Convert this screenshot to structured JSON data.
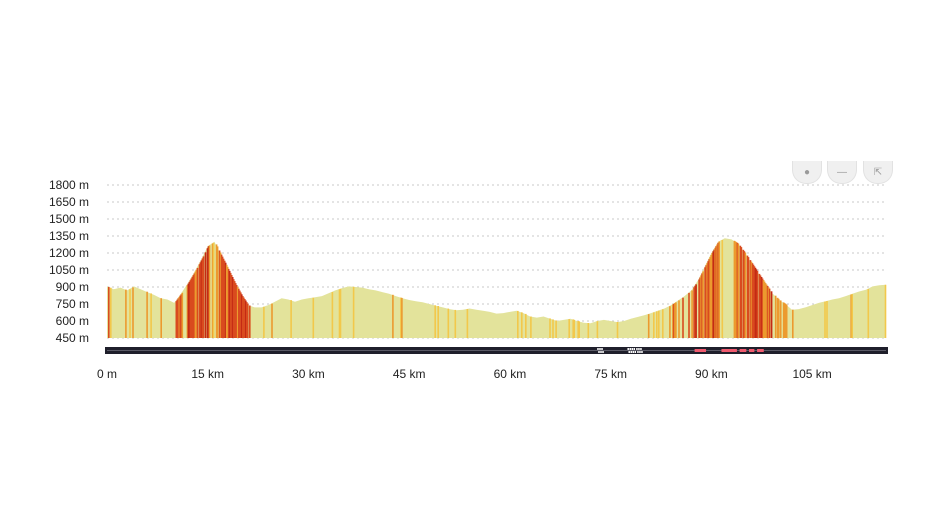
{
  "chart_data": {
    "type": "area",
    "title": "",
    "xlabel": "",
    "ylabel": "",
    "x_unit": "km",
    "y_unit": "m",
    "xlim": [
      0,
      116
    ],
    "ylim": [
      450,
      1800
    ],
    "y_tick_values": [
      450,
      600,
      750,
      900,
      1050,
      1200,
      1350,
      1500,
      1650,
      1800
    ],
    "y_tick_labels": [
      "450 m",
      "600 m",
      "750 m",
      "900 m",
      "1050 m",
      "1200 m",
      "1350 m",
      "1500 m",
      "1650 m",
      "1800 m"
    ],
    "x_tick_values": [
      0,
      15,
      30,
      45,
      60,
      75,
      90,
      105
    ],
    "x_tick_labels": [
      "0 m",
      "15 km",
      "30 km",
      "45 km",
      "60 km",
      "75 km",
      "90 km",
      "105 km"
    ],
    "grid": true,
    "series": [
      {
        "x": [
          0,
          1,
          2,
          3,
          4,
          5,
          6,
          7,
          8,
          9,
          10,
          11,
          12,
          13,
          14,
          15,
          16,
          17,
          18,
          19,
          20,
          21,
          22,
          23,
          24,
          25,
          26,
          27,
          28,
          29,
          30,
          31,
          32,
          33,
          34,
          35,
          36,
          37,
          38,
          39,
          40,
          41,
          42,
          43,
          44,
          45,
          46,
          47,
          48,
          49,
          50,
          51,
          52,
          53,
          54,
          55,
          56,
          57,
          58,
          59,
          60,
          61,
          62,
          63,
          64,
          65,
          66,
          67,
          68,
          69,
          70,
          71,
          72,
          73,
          74,
          75,
          76,
          77,
          78,
          79,
          80,
          81,
          82,
          83,
          84,
          85,
          86,
          87,
          88,
          89,
          90,
          91,
          92,
          93,
          94,
          95,
          96,
          97,
          98,
          99,
          100,
          101,
          102,
          103,
          104,
          105,
          106,
          107,
          108,
          109,
          110,
          111,
          112,
          113,
          114,
          115,
          116
        ],
        "y": [
          905,
          880,
          895,
          870,
          905,
          880,
          855,
          830,
          800,
          790,
          760,
          840,
          930,
          1030,
          1140,
          1260,
          1300,
          1180,
          1060,
          940,
          830,
          740,
          720,
          720,
          740,
          770,
          800,
          790,
          770,
          790,
          800,
          810,
          820,
          845,
          870,
          890,
          905,
          900,
          895,
          880,
          870,
          855,
          840,
          820,
          800,
          785,
          775,
          765,
          750,
          735,
          720,
          705,
          695,
          700,
          710,
          700,
          690,
          680,
          665,
          670,
          680,
          690,
          670,
          640,
          630,
          640,
          620,
          600,
          610,
          620,
          600,
          585,
          580,
          600,
          610,
          600,
          590,
          600,
          620,
          635,
          650,
          670,
          690,
          710,
          740,
          780,
          820,
          870,
          960,
          1080,
          1200,
          1300,
          1330,
          1320,
          1280,
          1200,
          1110,
          1020,
          930,
          850,
          790,
          750,
          700,
          705,
          720,
          740,
          760,
          775,
          790,
          800,
          820,
          840,
          860,
          875,
          905,
          915,
          920
        ]
      }
    ]
  },
  "colors": {
    "fill_base": "#e3e39b",
    "stripe_light": "#f2c84b",
    "stripe_mid": "#ec9a2f",
    "stripe_dark": "#d94b1f",
    "stripe_red": "#c42a14",
    "axis": "#1f1f2b",
    "surface_unpaved": "#ffffff",
    "surface_hazard": "#f05a6e"
  },
  "controls": [
    {
      "name": "person-icon"
    },
    {
      "name": "minus-icon"
    },
    {
      "name": "expand-icon"
    }
  ]
}
